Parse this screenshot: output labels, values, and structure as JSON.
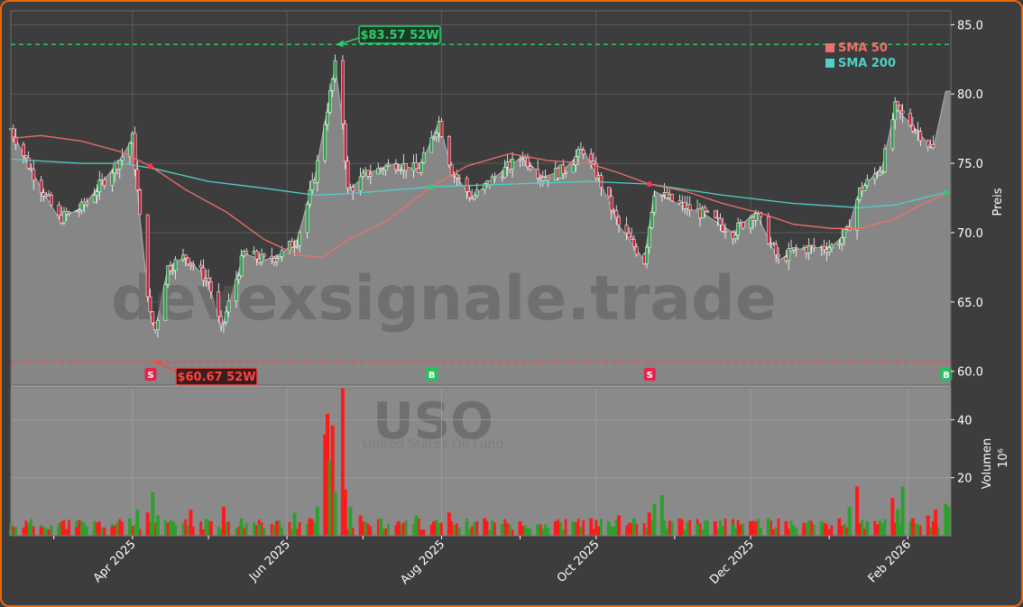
{
  "chart_data": {
    "type": "candlestick",
    "watermark": {
      "text": "devexsignale.trade",
      "ticker": "USO",
      "name": "United States Oil Fund"
    },
    "price_axis": {
      "label": "Preis",
      "ylim": [
        59.0,
        86.0
      ],
      "ticks": [
        "60.0",
        "65.0",
        "70.0",
        "75.0",
        "80.0",
        "85.0"
      ]
    },
    "volume_axis": {
      "label": "Volumen",
      "multiplier": "10⁶",
      "ylim": [
        0,
        51
      ],
      "ticks": [
        "20",
        "40"
      ]
    },
    "x_axis": {
      "range": [
        "2025-02-12",
        "2026-02-18"
      ],
      "ticks": [
        {
          "date": "2025-04-01",
          "label": "Apr 2025"
        },
        {
          "date": "2025-06-01",
          "label": "Jun 2025"
        },
        {
          "date": "2025-08-01",
          "label": "Aug 2025"
        },
        {
          "date": "2025-10-01",
          "label": "Oct 2025"
        },
        {
          "date": "2025-12-01",
          "label": "Dec 2025"
        },
        {
          "date": "2026-02-01",
          "label": "Feb 2026"
        }
      ]
    },
    "legend": {
      "placement": "top-right",
      "entries": [
        {
          "name": "SMA 50",
          "color": "#f0706a"
        },
        {
          "name": "SMA 200",
          "color": "#4fd1c5"
        }
      ]
    },
    "high_52w": {
      "value": 83.57,
      "label": "$83.57 52W",
      "date": "2025-06-20"
    },
    "low_52w": {
      "value": 60.67,
      "label": "$60.67 52W",
      "date": "2025-04-09"
    },
    "signals": [
      {
        "type": "S",
        "date": "2025-04-08",
        "price": 74.8
      },
      {
        "type": "B",
        "date": "2025-07-28",
        "price": 73.3
      },
      {
        "type": "S",
        "date": "2025-10-22",
        "price": 73.5
      },
      {
        "type": "B",
        "date": "2026-02-16",
        "price": 72.9
      }
    ],
    "close_series": [
      [
        "2025-02-12",
        77.5
      ],
      [
        "2025-02-20",
        74.5
      ],
      [
        "2025-03-03",
        71.0
      ],
      [
        "2025-03-12",
        71.8
      ],
      [
        "2025-03-20",
        73.6
      ],
      [
        "2025-03-28",
        75.5
      ],
      [
        "2025-04-01",
        76.8
      ],
      [
        "2025-04-04",
        71.0
      ],
      [
        "2025-04-08",
        64.0
      ],
      [
        "2025-04-10",
        63.0
      ],
      [
        "2025-04-15",
        67.5
      ],
      [
        "2025-04-22",
        68.3
      ],
      [
        "2025-05-01",
        66.5
      ],
      [
        "2025-05-06",
        63.0
      ],
      [
        "2025-05-15",
        68.5
      ],
      [
        "2025-05-23",
        68.0
      ],
      [
        "2025-05-30",
        68.5
      ],
      [
        "2025-06-05",
        69.5
      ],
      [
        "2025-06-12",
        74.0
      ],
      [
        "2025-06-18",
        80.0
      ],
      [
        "2025-06-20",
        82.0
      ],
      [
        "2025-06-23",
        78.0
      ],
      [
        "2025-06-25",
        73.0
      ],
      [
        "2025-07-03",
        74.3
      ],
      [
        "2025-07-14",
        75.0
      ],
      [
        "2025-07-23",
        74.5
      ],
      [
        "2025-07-31",
        78.0
      ],
      [
        "2025-08-05",
        74.5
      ],
      [
        "2025-08-13",
        72.5
      ],
      [
        "2025-08-22",
        74.0
      ],
      [
        "2025-09-02",
        75.5
      ],
      [
        "2025-09-10",
        74.0
      ],
      [
        "2025-09-18",
        74.5
      ],
      [
        "2025-09-26",
        76.0
      ],
      [
        "2025-10-03",
        73.5
      ],
      [
        "2025-10-10",
        70.5
      ],
      [
        "2025-10-20",
        68.0
      ],
      [
        "2025-10-24",
        73.0
      ],
      [
        "2025-11-03",
        72.0
      ],
      [
        "2025-11-13",
        71.3
      ],
      [
        "2025-11-24",
        70.0
      ],
      [
        "2025-12-03",
        71.5
      ],
      [
        "2025-12-12",
        68.0
      ],
      [
        "2025-12-19",
        68.8
      ],
      [
        "2026-01-02",
        69.0
      ],
      [
        "2026-01-08",
        70.0
      ],
      [
        "2026-01-13",
        73.0
      ],
      [
        "2026-01-22",
        74.8
      ],
      [
        "2026-01-27",
        79.0
      ],
      [
        "2026-02-04",
        77.5
      ],
      [
        "2026-02-11",
        76.0
      ],
      [
        "2026-02-16",
        80.2
      ],
      [
        "2026-02-18",
        80.2
      ]
    ],
    "sma50": [
      [
        "2025-02-12",
        76.8
      ],
      [
        "2025-02-24",
        77.0
      ],
      [
        "2025-03-12",
        76.6
      ],
      [
        "2025-03-28",
        75.8
      ],
      [
        "2025-04-08",
        74.8
      ],
      [
        "2025-04-22",
        73.1
      ],
      [
        "2025-05-08",
        71.5
      ],
      [
        "2025-05-23",
        69.5
      ],
      [
        "2025-06-05",
        68.4
      ],
      [
        "2025-06-15",
        68.2
      ],
      [
        "2025-06-25",
        69.5
      ],
      [
        "2025-07-10",
        70.8
      ],
      [
        "2025-07-28",
        73.3
      ],
      [
        "2025-08-11",
        74.8
      ],
      [
        "2025-08-28",
        75.7
      ],
      [
        "2025-09-12",
        75.2
      ],
      [
        "2025-09-28",
        75.0
      ],
      [
        "2025-10-10",
        74.3
      ],
      [
        "2025-10-22",
        73.5
      ],
      [
        "2025-11-05",
        73.0
      ],
      [
        "2025-11-20",
        72.1
      ],
      [
        "2025-12-05",
        71.4
      ],
      [
        "2025-12-18",
        70.6
      ],
      [
        "2026-01-02",
        70.3
      ],
      [
        "2026-01-13",
        70.3
      ],
      [
        "2026-01-27",
        71.0
      ],
      [
        "2026-02-06",
        72.0
      ],
      [
        "2026-02-16",
        72.8
      ]
    ],
    "sma200": [
      [
        "2025-02-12",
        75.3
      ],
      [
        "2025-03-12",
        75.0
      ],
      [
        "2025-03-28",
        75.0
      ],
      [
        "2025-04-10",
        74.6
      ],
      [
        "2025-05-01",
        73.7
      ],
      [
        "2025-05-23",
        73.2
      ],
      [
        "2025-06-12",
        72.7
      ],
      [
        "2025-06-25",
        72.8
      ],
      [
        "2025-07-28",
        73.3
      ],
      [
        "2025-08-28",
        73.5
      ],
      [
        "2025-09-28",
        73.7
      ],
      [
        "2025-10-22",
        73.5
      ],
      [
        "2025-11-20",
        72.7
      ],
      [
        "2025-12-18",
        72.1
      ],
      [
        "2026-01-13",
        71.8
      ],
      [
        "2026-01-27",
        72.0
      ],
      [
        "2026-02-16",
        72.9
      ]
    ],
    "volume_bars": [
      [
        "2025-02-12",
        2,
        "up"
      ],
      [
        "2025-02-18",
        3,
        "down"
      ],
      [
        "2025-02-24",
        3,
        "down"
      ],
      [
        "2025-03-03",
        3,
        "up"
      ],
      [
        "2025-03-10",
        3,
        "down"
      ],
      [
        "2025-03-17",
        2,
        "up"
      ],
      [
        "2025-03-24",
        3,
        "down"
      ],
      [
        "2025-03-31",
        6,
        "up"
      ],
      [
        "2025-04-03",
        9,
        "up"
      ],
      [
        "2025-04-07",
        8,
        "down"
      ],
      [
        "2025-04-09",
        15,
        "up"
      ],
      [
        "2025-04-11",
        7,
        "up"
      ],
      [
        "2025-04-17",
        5,
        "up"
      ],
      [
        "2025-04-24",
        9,
        "down"
      ],
      [
        "2025-05-02",
        5,
        "down"
      ],
      [
        "2025-05-07",
        10,
        "down"
      ],
      [
        "2025-05-14",
        6,
        "up"
      ],
      [
        "2025-05-21",
        4,
        "up"
      ],
      [
        "2025-05-28",
        5,
        "down"
      ],
      [
        "2025-06-04",
        8,
        "up"
      ],
      [
        "2025-06-10",
        6,
        "down"
      ],
      [
        "2025-06-13",
        10,
        "up"
      ],
      [
        "2025-06-16",
        35,
        "down"
      ],
      [
        "2025-06-17",
        42,
        "down"
      ],
      [
        "2025-06-18",
        26,
        "up"
      ],
      [
        "2025-06-19",
        38,
        "down"
      ],
      [
        "2025-06-20",
        15,
        "up"
      ],
      [
        "2025-06-23",
        51,
        "down"
      ],
      [
        "2025-06-24",
        16,
        "down"
      ],
      [
        "2025-06-26",
        10,
        "up"
      ],
      [
        "2025-06-30",
        7,
        "down"
      ],
      [
        "2025-07-08",
        6,
        "up"
      ],
      [
        "2025-07-15",
        5,
        "down"
      ],
      [
        "2025-07-22",
        7,
        "up"
      ],
      [
        "2025-07-29",
        5,
        "down"
      ],
      [
        "2025-08-04",
        8,
        "down"
      ],
      [
        "2025-08-11",
        5,
        "up"
      ],
      [
        "2025-08-18",
        6,
        "down"
      ],
      [
        "2025-08-25",
        4,
        "up"
      ],
      [
        "2025-09-01",
        5,
        "down"
      ],
      [
        "2025-09-08",
        4,
        "up"
      ],
      [
        "2025-09-15",
        5,
        "down"
      ],
      [
        "2025-09-22",
        5,
        "up"
      ],
      [
        "2025-09-29",
        6,
        "down"
      ],
      [
        "2025-10-06",
        5,
        "up"
      ],
      [
        "2025-10-10",
        7,
        "down"
      ],
      [
        "2025-10-16",
        6,
        "up"
      ],
      [
        "2025-10-22",
        8,
        "down"
      ],
      [
        "2025-10-24",
        11,
        "up"
      ],
      [
        "2025-10-27",
        14,
        "up"
      ],
      [
        "2025-11-03",
        6,
        "down"
      ],
      [
        "2025-11-10",
        4,
        "up"
      ],
      [
        "2025-11-17",
        5,
        "down"
      ],
      [
        "2025-11-24",
        4,
        "up"
      ],
      [
        "2025-12-01",
        5,
        "down"
      ],
      [
        "2025-12-08",
        6,
        "up"
      ],
      [
        "2025-12-15",
        5,
        "down"
      ],
      [
        "2025-12-22",
        3,
        "down"
      ],
      [
        "2025-12-29",
        5,
        "up"
      ],
      [
        "2026-01-05",
        6,
        "down"
      ],
      [
        "2026-01-09",
        10,
        "up"
      ],
      [
        "2026-01-12",
        17,
        "down"
      ],
      [
        "2026-01-16",
        5,
        "up"
      ],
      [
        "2026-01-20",
        4,
        "down"
      ],
      [
        "2026-01-26",
        13,
        "down"
      ],
      [
        "2026-01-28",
        9,
        "up"
      ],
      [
        "2026-01-30",
        17,
        "up"
      ],
      [
        "2026-02-03",
        6,
        "down"
      ],
      [
        "2026-02-09",
        7,
        "down"
      ],
      [
        "2026-02-12",
        9,
        "down"
      ],
      [
        "2026-02-16",
        11,
        "up"
      ],
      [
        "2026-02-17",
        10,
        "up"
      ]
    ],
    "colors": {
      "up": "#2ca02c",
      "down": "#ff1a1a",
      "high_line": "#2ecc71",
      "low_line": "#ff4444",
      "area": "#8a8a8a",
      "panel": "#3d3d3d"
    }
  }
}
